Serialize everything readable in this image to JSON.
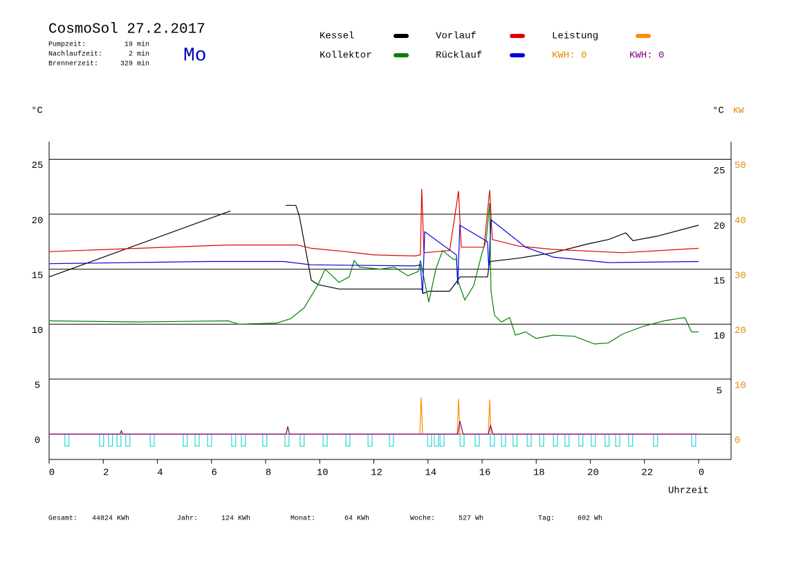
{
  "chart_data": {
    "type": "line",
    "title": "CosmoSol 27.2.2017",
    "day": "Mo",
    "info": [
      {
        "label": "Pumpzeit:",
        "value": "19 min"
      },
      {
        "label": "Nachlaufzeit:",
        "value": "2 min"
      },
      {
        "label": "Brennerzeit:",
        "value": "329 min"
      }
    ],
    "kwh_labels": [
      {
        "text": "KWH: 0",
        "color": "#e88a00"
      },
      {
        "text": "KWH: 0",
        "color": "#800080"
      }
    ],
    "footer": [
      {
        "label": "Gesamt:",
        "value": "44824 KWh"
      },
      {
        "label": "Jahr:",
        "value": "124 KWh"
      },
      {
        "label": "Monat:",
        "value": "64 KWh"
      },
      {
        "label": "Woche:",
        "value": "527 Wh"
      },
      {
        "label": "Tag:",
        "value": "602 Wh"
      }
    ],
    "ylabel": "°C",
    "y2label_c": "°C",
    "y2label": "KW",
    "xlabel": "Uhrzeit",
    "xlim": [
      0,
      25.2
    ],
    "xticks": [
      0,
      2,
      4,
      6,
      8,
      10,
      12,
      14,
      16,
      18,
      20,
      22,
      {
        "value": 24,
        "label": "0"
      }
    ],
    "ylim": [
      -2.3,
      26.6
    ],
    "yticks": [
      0,
      5,
      10,
      15,
      20,
      25
    ],
    "yticks_right": [
      5,
      10,
      15,
      20,
      25
    ],
    "y2lim": [
      -4.6,
      53.2
    ],
    "y2ticks": [
      0,
      10,
      20,
      30,
      40,
      50
    ],
    "grid": true,
    "series": [
      {
        "name": "Kessel",
        "color": "#000000",
        "x": [
          0,
          6.7,
          7.7,
          8.74,
          9.12,
          9.25,
          9.69,
          9.94,
          10.71,
          13.77,
          13.83,
          14.03,
          14.8,
          15.1,
          15.18,
          16.2,
          16.28,
          17.35,
          18.63,
          19.91,
          20.67,
          21.31,
          21.57,
          22.46,
          24.0
        ],
        "values": [
          14.3,
          20.3,
          null,
          20.8,
          20.8,
          19.8,
          14.0,
          13.6,
          13.2,
          13.2,
          12.8,
          13.0,
          13.0,
          14.0,
          14.3,
          14.3,
          15.7,
          16.0,
          16.5,
          17.3,
          17.7,
          18.3,
          17.6,
          18.0,
          19.0
        ]
      },
      {
        "name": "Kollektor",
        "color": "#008000",
        "x": [
          0,
          3.3,
          6.62,
          7.0,
          8.41,
          8.92,
          9.43,
          9.94,
          10.2,
          10.71,
          11.09,
          11.27,
          11.47,
          12.24,
          12.75,
          13.26,
          13.65,
          13.72,
          14.03,
          14.29,
          14.54,
          14.93,
          15.05,
          15.1,
          15.36,
          15.69,
          16.0,
          16.15,
          16.28,
          16.33,
          16.46,
          16.71,
          17.02,
          17.23,
          17.61,
          17.99,
          18.63,
          19.4,
          20.16,
          20.67,
          21.19,
          21.95,
          22.72,
          23.49,
          23.74,
          24.0
        ],
        "values": [
          10.3,
          10.2,
          10.3,
          10.0,
          10.1,
          10.5,
          11.5,
          13.6,
          15.0,
          13.8,
          14.3,
          15.8,
          15.2,
          15.0,
          15.2,
          14.4,
          14.8,
          15.8,
          12.0,
          15.0,
          16.7,
          15.9,
          15.9,
          14.0,
          12.2,
          13.5,
          16.5,
          17.6,
          21.0,
          13.0,
          10.8,
          10.2,
          10.6,
          9.0,
          9.3,
          8.7,
          9.0,
          8.9,
          8.2,
          8.3,
          9.1,
          9.8,
          10.3,
          10.6,
          9.3,
          9.3
        ]
      },
      {
        "name": "Vorlauf",
        "color": "#e00000",
        "x": [
          0,
          3.3,
          6.62,
          9.17,
          9.69,
          10.96,
          11.98,
          13.52,
          13.72,
          13.77,
          13.85,
          14.8,
          15.13,
          15.23,
          16.07,
          16.28,
          16.38,
          17.35,
          18.63,
          21.19,
          24.0
        ],
        "values": [
          16.6,
          16.9,
          17.2,
          17.2,
          16.9,
          16.6,
          16.3,
          16.2,
          16.3,
          22.3,
          16.5,
          16.7,
          22.1,
          17.0,
          17.0,
          22.2,
          17.7,
          17.1,
          16.8,
          16.5,
          16.9
        ]
      },
      {
        "name": "Rücklauf",
        "color": "#0000e0",
        "x": [
          0,
          5.85,
          8.66,
          9.69,
          13.52,
          13.72,
          13.8,
          13.88,
          15.05,
          15.1,
          15.18,
          16.2,
          16.25,
          16.33,
          17.61,
          18.63,
          20.67,
          24.0
        ],
        "values": [
          15.5,
          15.7,
          15.7,
          15.4,
          15.3,
          15.4,
          12.8,
          18.4,
          16.3,
          13.6,
          19.0,
          17.5,
          15.0,
          19.5,
          17.0,
          16.1,
          15.6,
          15.7
        ]
      },
      {
        "name": "Leistung",
        "color": "#ff8c00",
        "axis": "y2",
        "x": [
          0,
          13.7,
          13.75,
          13.8,
          15.08,
          15.13,
          15.18,
          16.23,
          16.28,
          16.33,
          24.0
        ],
        "values": [
          0,
          0,
          6.7,
          0,
          0,
          6.4,
          0,
          0,
          6.3,
          0,
          0
        ]
      },
      {
        "color": "#800080",
        "axis": "y2",
        "x": [
          0,
          2.62,
          2.67,
          2.72,
          8.76,
          8.82,
          8.88,
          15.1,
          15.18,
          15.3,
          16.23,
          16.31,
          16.4,
          24.0
        ],
        "values": [
          0,
          0,
          0.6,
          0,
          0,
          1.4,
          0,
          0,
          2.4,
          0,
          0,
          1.6,
          0,
          0
        ]
      }
    ],
    "pump": {
      "color": "#00cccc",
      "x": [
        0.66,
        1.94,
        2.27,
        2.58,
        2.91,
        3.81,
        5.03,
        5.47,
        5.93,
        6.82,
        7.18,
        7.97,
        8.79,
        9.35,
        10.2,
        11.04,
        11.86,
        12.65,
        14.06,
        14.31,
        14.52,
        15.26,
        15.82,
        16.38,
        16.79,
        17.22,
        17.74,
        18.2,
        18.71,
        19.14,
        19.65,
        20.11,
        20.62,
        21.01,
        21.49,
        22.41,
        23.82
      ],
      "values": [
        -1.1,
        -1.1,
        -1.1,
        -1.1,
        -1.1,
        -1.1,
        -1.1,
        -1.1,
        -1.1,
        -1.1,
        -1.1,
        -1.1,
        -1.1,
        -1.1,
        -1.1,
        -1.1,
        -1.1,
        -1.1,
        -1.1,
        -1.1,
        -1.1,
        -1.1,
        -1.1,
        -1.1,
        -1.1,
        -1.1,
        -1.1,
        -1.1,
        -1.1,
        -1.1,
        -1.1,
        -1.1,
        -1.1,
        -1.1,
        -1.1,
        -1.1,
        -1.1
      ]
    }
  }
}
